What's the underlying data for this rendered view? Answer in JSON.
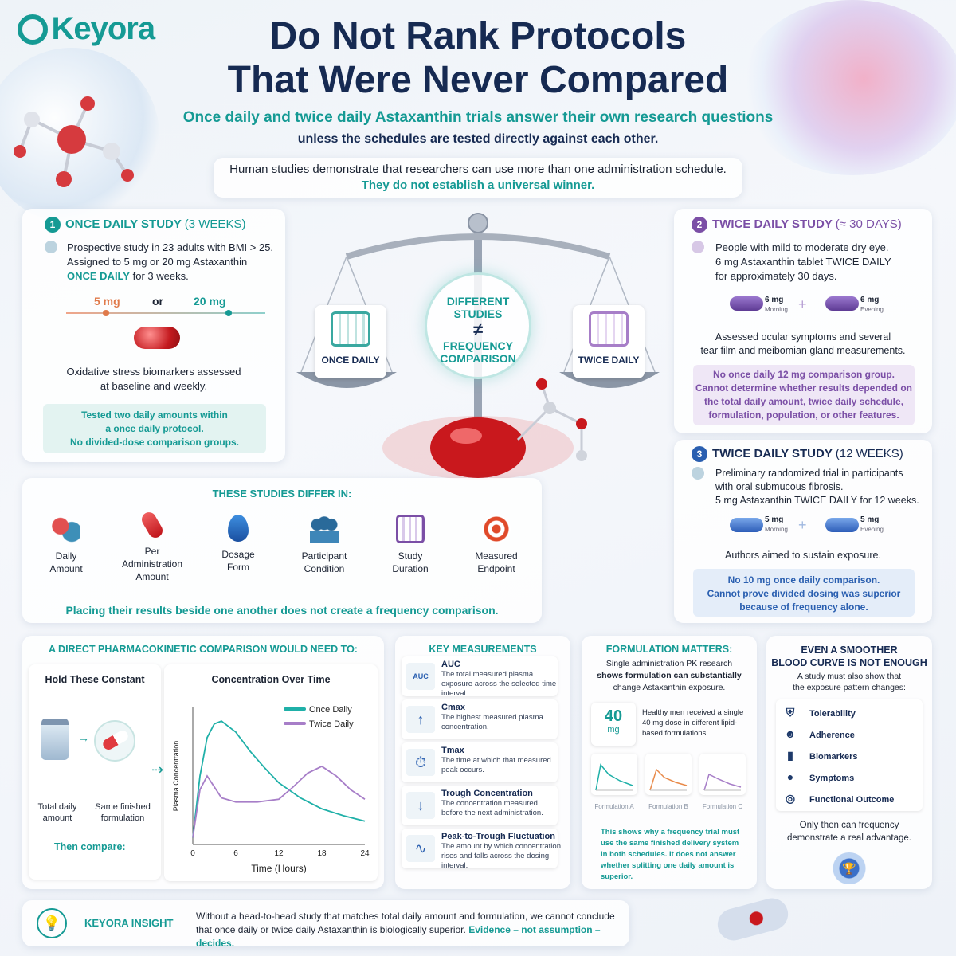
{
  "brand": {
    "name": "Keyora"
  },
  "title": {
    "line1": "Do Not Rank Protocols",
    "line2": "That Were Never Compared"
  },
  "subtitle": {
    "teal": "Once daily and twice daily Astaxanthin trials answer their own research questions",
    "dark": "unless the schedules are tested directly against each other."
  },
  "intro": {
    "line1": "Human studies demonstrate that researchers can use more than one administration schedule.",
    "line2": "They do not establish a universal winner."
  },
  "scale": {
    "center_l1": "DIFFERENT",
    "center_l2": "STUDIES",
    "neq": "≠",
    "center_l3": "FREQUENCY",
    "center_l4": "COMPARISON",
    "left_label": "ONCE DAILY",
    "right_label": "TWICE DAILY"
  },
  "study1": {
    "num": "1",
    "title": "ONCE DAILY STUDY",
    "title_paren": "(3 WEEKS)",
    "desc_l1": "Prospective study in 23 adults with BMI > 25.",
    "desc_l2": "Assigned to 5 mg or 20 mg Astaxanthin",
    "desc_l3a": "ONCE DAILY",
    "desc_l3b": "for 3 weeks.",
    "dose_a": "5 mg",
    "or": "or",
    "dose_b": "20 mg",
    "assess_l1": "Oxidative stress biomarkers assessed",
    "assess_l2": "at baseline and weekly.",
    "note_l1": "Tested two daily amounts within",
    "note_l2": "a once daily protocol.",
    "note_l3": "No divided-dose comparison groups."
  },
  "study2": {
    "num": "2",
    "title": "TWICE DAILY STUDY",
    "title_paren": "(≈ 30 DAYS)",
    "desc_l1": "People with mild to moderate dry eye.",
    "desc_l2": "6 mg Astaxanthin tablet TWICE DAILY",
    "desc_l3": "for approximately 30 days.",
    "pill_a_dose": "6 mg",
    "pill_a_time": "Morning",
    "pill_b_dose": "6 mg",
    "pill_b_time": "Evening",
    "assess_l1": "Assessed ocular symptoms and several",
    "assess_l2": "tear film and meibomian gland measurements.",
    "note_l1": "No once daily 12 mg comparison group.",
    "note_l2": "Cannot determine whether results depended on",
    "note_l3": "the total daily amount, twice daily schedule,",
    "note_l4": "formulation, population, or other features."
  },
  "study3": {
    "num": "3",
    "title": "TWICE DAILY STUDY",
    "title_paren": "(12 WEEKS)",
    "desc_l1": "Preliminary randomized trial in participants",
    "desc_l2": "with oral submucous fibrosis.",
    "desc_l3": "5 mg Astaxanthin TWICE DAILY for 12 weeks.",
    "pill_a_dose": "5 mg",
    "pill_a_time": "Morning",
    "pill_b_dose": "5 mg",
    "pill_b_time": "Evening",
    "aim": "Authors aimed to sustain exposure.",
    "note_l1": "No 10 mg once daily comparison.",
    "note_l2": "Cannot prove divided dosing was superior",
    "note_l3": "because of frequency alone."
  },
  "differ": {
    "title": "THESE STUDIES DIFFER IN:",
    "items": [
      {
        "l1": "Daily",
        "l2": "Amount",
        "icon": "capsules-icon"
      },
      {
        "l1": "Per",
        "l2": "Administration",
        "l3": "Amount",
        "icon": "pill-icon"
      },
      {
        "l1": "Dosage",
        "l2": "Form",
        "icon": "droplet-icon"
      },
      {
        "l1": "Participant",
        "l2": "Condition",
        "icon": "people-icon"
      },
      {
        "l1": "Study",
        "l2": "Duration",
        "icon": "calendar-icon"
      },
      {
        "l1": "Measured",
        "l2": "Endpoint",
        "icon": "target-icon"
      }
    ],
    "footer": "Placing their results beside one another does not create a frequency comparison."
  },
  "pk": {
    "title": "A DIRECT PHARMACOKINETIC COMPARISON WOULD NEED TO:",
    "hold": "Hold These Constant",
    "item_a_l1": "Total daily",
    "item_a_l2": "amount",
    "item_b_l1": "Same finished",
    "item_b_l2": "formulation",
    "then": "Then compare:",
    "chart_title": "Concentration Over Time"
  },
  "chart_data": {
    "type": "line",
    "title": "Concentration Over Time",
    "xlabel": "Time (Hours)",
    "ylabel": "Plasma Concentration",
    "x_ticks": [
      0,
      6,
      12,
      18,
      24
    ],
    "xlim": [
      0,
      24
    ],
    "series": [
      {
        "name": "Once Daily",
        "color": "#1fb0a8",
        "x": [
          0,
          1,
          2,
          3,
          4,
          6,
          8,
          10,
          12,
          15,
          18,
          21,
          24
        ],
        "y": [
          0.05,
          0.5,
          0.78,
          0.88,
          0.9,
          0.82,
          0.68,
          0.56,
          0.45,
          0.34,
          0.26,
          0.21,
          0.17
        ]
      },
      {
        "name": "Twice Daily",
        "color": "#a77ec8",
        "x": [
          0,
          1,
          2,
          3,
          4,
          6,
          9,
          12,
          14,
          16,
          18,
          20,
          22,
          24
        ],
        "y": [
          0.05,
          0.4,
          0.5,
          0.42,
          0.34,
          0.31,
          0.31,
          0.33,
          0.42,
          0.52,
          0.57,
          0.5,
          0.4,
          0.33
        ]
      }
    ],
    "legend": "top-right"
  },
  "km": {
    "title": "KEY MEASUREMENTS",
    "items": [
      {
        "t": "AUC",
        "d": "The total measured plasma exposure across the selected time interval.",
        "icon": "auc-icon",
        "glyph": "AUC"
      },
      {
        "t": "Cmax",
        "d": "The highest measured plasma concentration.",
        "icon": "arrow-up-icon",
        "glyph": "↑"
      },
      {
        "t": "Tmax",
        "d": "The time at which that measured peak occurs.",
        "icon": "stopwatch-icon",
        "glyph": "⏱"
      },
      {
        "t": "Trough Concentration",
        "d": "The concentration measured before the next administration.",
        "icon": "arrow-down-icon",
        "glyph": "↓"
      },
      {
        "t": "Peak-to-Trough Fluctuation",
        "d": "The amount by which concentration rises and falls across the dosing interval.",
        "icon": "waveform-icon",
        "glyph": "∿"
      }
    ]
  },
  "form": {
    "title": "FORMULATION MATTERS:",
    "l1": "Single administration PK research",
    "l2b": "shows formulation can substantially",
    "l3": "change Astaxanthin exposure.",
    "badge_num": "40",
    "badge_unit": "mg",
    "badge_text": "Healthy men received a single 40 mg dose in different lipid-based formulations.",
    "fA": "Formulation A",
    "fB": "Formulation B",
    "fC": "Formulation C",
    "note": "This shows why a frequency trial must use the same finished delivery system in both schedules. It does not answer whether splitting one daily amount is superior."
  },
  "smooth": {
    "title_l1": "EVEN A SMOOTHER",
    "title_l2": "BLOOD CURVE IS NOT ENOUGH",
    "sub_l1": "A study must also show that",
    "sub_l2": "the exposure pattern changes:",
    "items": [
      {
        "t": "Tolerability",
        "icon": "shield-icon",
        "glyph": "⛨"
      },
      {
        "t": "Adherence",
        "icon": "person-check-icon",
        "glyph": "☻"
      },
      {
        "t": "Biomarkers",
        "icon": "test-tube-icon",
        "glyph": "▮"
      },
      {
        "t": "Symptoms",
        "icon": "head-icon",
        "glyph": "●"
      },
      {
        "t": "Functional Outcome",
        "icon": "target-icon",
        "glyph": "◎"
      }
    ],
    "footer_l1": "Only then can frequency",
    "footer_l2": "demonstrate a real advantage."
  },
  "insight": {
    "label": "KEYORA INSIGHT",
    "l1": "Without a head-to-head study that matches total daily amount and formulation, we cannot conclude",
    "l2": "that once daily or twice daily Astaxanthin is biologically superior.",
    "l2b": "Evidence – not assumption – decides."
  }
}
